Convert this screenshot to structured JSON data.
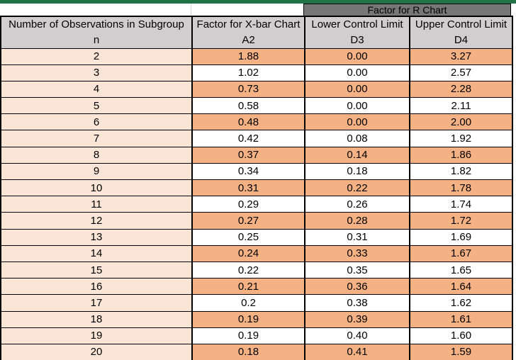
{
  "banner": {
    "label": "Factor for R Chart"
  },
  "columns": [
    {
      "title": "Number of Observations in Subgroup",
      "symbol": "n"
    },
    {
      "title": "Factor for X-bar Chart",
      "symbol": "A2"
    },
    {
      "title": "Lower Control Limit",
      "symbol": "D3"
    },
    {
      "title": "Upper Control Limit",
      "symbol": "D4"
    }
  ],
  "rows": [
    {
      "n": "2",
      "a2": "1.88",
      "d3": "0.00",
      "d4": "3.27"
    },
    {
      "n": "3",
      "a2": "1.02",
      "d3": "0.00",
      "d4": "2.57"
    },
    {
      "n": "4",
      "a2": "0.73",
      "d3": "0.00",
      "d4": "2.28"
    },
    {
      "n": "5",
      "a2": "0.58",
      "d3": "0.00",
      "d4": "2.11"
    },
    {
      "n": "6",
      "a2": "0.48",
      "d3": "0.00",
      "d4": "2.00"
    },
    {
      "n": "7",
      "a2": "0.42",
      "d3": "0.08",
      "d4": "1.92"
    },
    {
      "n": "8",
      "a2": "0.37",
      "d3": "0.14",
      "d4": "1.86"
    },
    {
      "n": "9",
      "a2": "0.34",
      "d3": "0.18",
      "d4": "1.82"
    },
    {
      "n": "10",
      "a2": "0.31",
      "d3": "0.22",
      "d4": "1.78"
    },
    {
      "n": "11",
      "a2": "0.29",
      "d3": "0.26",
      "d4": "1.74"
    },
    {
      "n": "12",
      "a2": "0.27",
      "d3": "0.28",
      "d4": "1.72"
    },
    {
      "n": "13",
      "a2": "0.25",
      "d3": "0.31",
      "d4": "1.69"
    },
    {
      "n": "14",
      "a2": "0.24",
      "d3": "0.33",
      "d4": "1.67"
    },
    {
      "n": "15",
      "a2": "0.22",
      "d3": "0.35",
      "d4": "1.65"
    },
    {
      "n": "16",
      "a2": "0.21",
      "d3": "0.36",
      "d4": "1.64"
    },
    {
      "n": "17",
      "a2": "0.2",
      "d3": "0.38",
      "d4": "1.62"
    },
    {
      "n": "18",
      "a2": "0.19",
      "d3": "0.39",
      "d4": "1.61"
    },
    {
      "n": "19",
      "a2": "0.19",
      "d3": "0.40",
      "d4": "1.60"
    },
    {
      "n": "20",
      "a2": "0.18",
      "d3": "0.41",
      "d4": "1.59"
    }
  ],
  "colors": {
    "green_bar": "#217346",
    "banner_bg": "#777777",
    "header_bg": "#d0cece",
    "first_col_bg": "#fbe5d6",
    "orange_row_bg": "#f4b183",
    "white_row_bg": "#ffffff",
    "border": "#000000"
  }
}
